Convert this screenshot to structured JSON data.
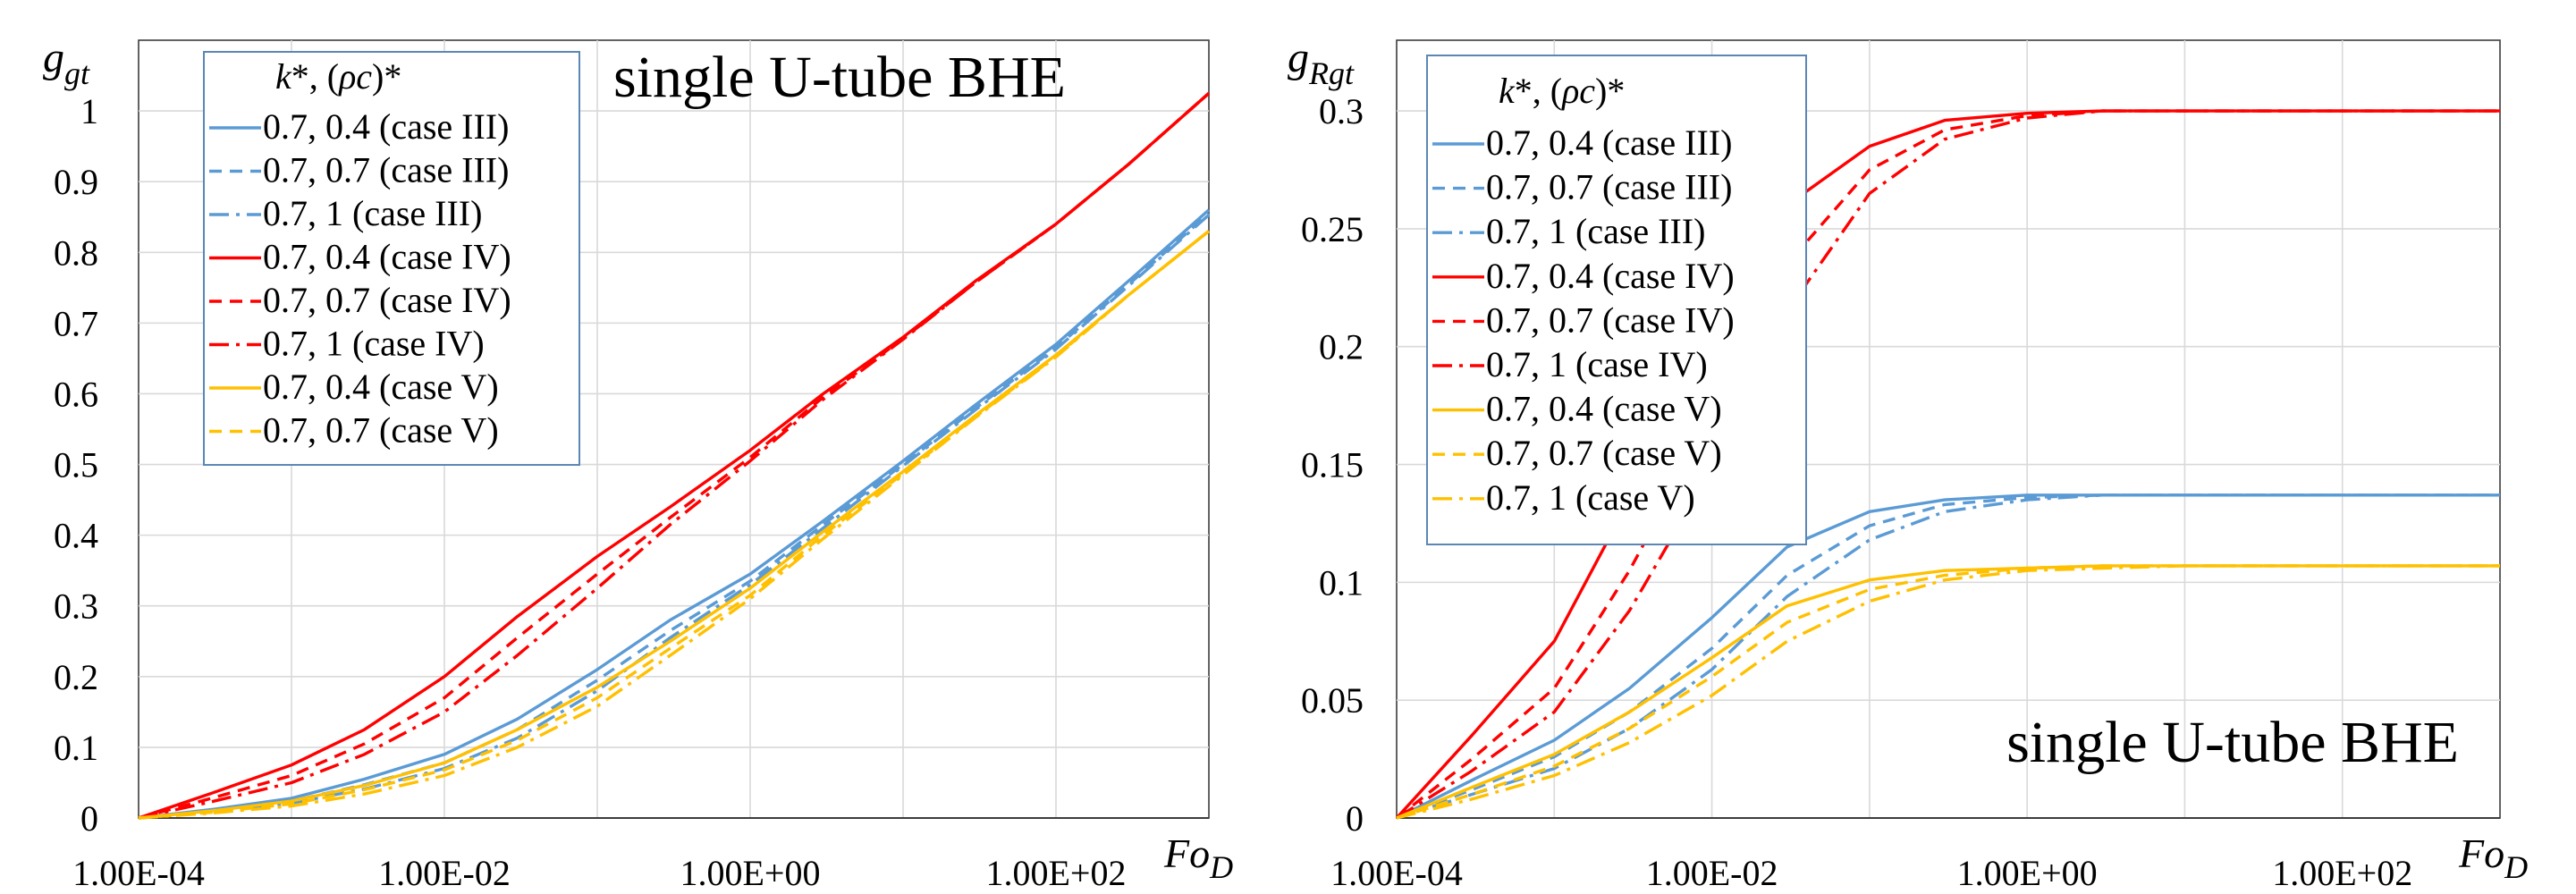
{
  "chart_data": [
    {
      "type": "line",
      "xscale": "log",
      "xlim": [
        0.0001,
        1000
      ],
      "ylim": [
        0,
        1.1
      ],
      "xticks": [
        0.0001,
        0.01,
        1,
        100
      ],
      "xtick_labels": [
        "1.00E-04",
        "1.00E-02",
        "1.00E+00",
        "1.00E+02"
      ],
      "yticks": [
        0,
        0.1,
        0.2,
        0.3,
        0.4,
        0.5,
        0.6,
        0.7,
        0.8,
        0.9,
        1
      ],
      "ytick_labels": [
        "0",
        "0.1",
        "0.2",
        "0.3",
        "0.4",
        "0.5",
        "0.6",
        "0.7",
        "0.8",
        "0.9",
        "1"
      ],
      "ylabel": {
        "main": "g",
        "sub": "gt"
      },
      "xlabel": {
        "main": "Fo",
        "sub": "D"
      },
      "annotation": "single U-tube BHE",
      "legend_title": {
        "k": "k",
        "a": "*, (",
        "rho": "ρc",
        "b": ")*"
      },
      "grid": true,
      "legend_position": "top-left",
      "series": [
        {
          "name": "0.7, 0.4 (case III)",
          "color": "#5b9bd5",
          "dash": "solid",
          "x": [
            0.0001,
            0.0003,
            0.001,
            0.003,
            0.01,
            0.03,
            0.1,
            0.3,
            1,
            3,
            10,
            30,
            100,
            300,
            1000
          ],
          "y": [
            0,
            0.012,
            0.028,
            0.055,
            0.09,
            0.14,
            0.21,
            0.28,
            0.345,
            0.42,
            0.505,
            0.585,
            0.67,
            0.76,
            0.86
          ]
        },
        {
          "name": "0.7, 0.7 (case III)",
          "color": "#5b9bd5",
          "dash": "dash",
          "x": [
            0.0001,
            0.0003,
            0.001,
            0.003,
            0.01,
            0.03,
            0.1,
            0.3,
            1,
            3,
            10,
            30,
            100,
            300,
            1000
          ],
          "y": [
            0,
            0.01,
            0.024,
            0.047,
            0.078,
            0.125,
            0.195,
            0.265,
            0.335,
            0.415,
            0.5,
            0.58,
            0.665,
            0.755,
            0.855
          ]
        },
        {
          "name": "0.7, 1 (case III)",
          "color": "#5b9bd5",
          "dash": "dashdot",
          "x": [
            0.0001,
            0.0003,
            0.001,
            0.003,
            0.01,
            0.03,
            0.1,
            0.3,
            1,
            3,
            10,
            30,
            100,
            300,
            1000
          ],
          "y": [
            0,
            0.009,
            0.021,
            0.041,
            0.07,
            0.113,
            0.18,
            0.255,
            0.33,
            0.41,
            0.498,
            0.578,
            0.663,
            0.753,
            0.853
          ]
        },
        {
          "name": "0.7, 0.4 (case IV)",
          "color": "#ff0000",
          "dash": "solid",
          "x": [
            0.0001,
            0.0003,
            0.001,
            0.003,
            0.01,
            0.03,
            0.1,
            0.3,
            1,
            3,
            10,
            30,
            100,
            300,
            1000
          ],
          "y": [
            0,
            0.035,
            0.075,
            0.125,
            0.2,
            0.285,
            0.37,
            0.44,
            0.52,
            0.6,
            0.68,
            0.76,
            0.84,
            0.925,
            1.025
          ]
        },
        {
          "name": "0.7, 0.7 (case IV)",
          "color": "#ff0000",
          "dash": "dash",
          "x": [
            0.0001,
            0.0003,
            0.001,
            0.003,
            0.01,
            0.03,
            0.1,
            0.3,
            1,
            3,
            10,
            30,
            100,
            300,
            1000
          ],
          "y": [
            0,
            0.028,
            0.06,
            0.105,
            0.17,
            0.255,
            0.345,
            0.425,
            0.51,
            0.595,
            0.678,
            0.758,
            0.84,
            0.925,
            1.025
          ]
        },
        {
          "name": "0.7, 1 (case IV)",
          "color": "#ff0000",
          "dash": "dashdot",
          "x": [
            0.0001,
            0.0003,
            0.001,
            0.003,
            0.01,
            0.03,
            0.1,
            0.3,
            1,
            3,
            10,
            30,
            100,
            300,
            1000
          ],
          "y": [
            0,
            0.023,
            0.05,
            0.09,
            0.15,
            0.23,
            0.325,
            0.415,
            0.505,
            0.592,
            0.677,
            0.758,
            0.84,
            0.925,
            1.025
          ]
        },
        {
          "name": "0.7, 0.4 (case V)",
          "color": "#ffc000",
          "dash": "solid",
          "x": [
            0.0001,
            0.0003,
            0.001,
            0.003,
            0.01,
            0.03,
            0.1,
            0.3,
            1,
            3,
            10,
            30,
            100,
            300,
            1000
          ],
          "y": [
            0,
            0.01,
            0.024,
            0.046,
            0.078,
            0.125,
            0.185,
            0.25,
            0.325,
            0.405,
            0.49,
            0.57,
            0.655,
            0.74,
            0.83
          ]
        },
        {
          "name": "0.7, 0.7 (case V)",
          "color": "#ffc000",
          "dash": "dash",
          "x": [
            0.0001,
            0.0003,
            0.001,
            0.003,
            0.01,
            0.03,
            0.1,
            0.3,
            1,
            3,
            10,
            30,
            100,
            300,
            1000
          ],
          "y": [
            0,
            0.008,
            0.02,
            0.04,
            0.068,
            0.11,
            0.17,
            0.24,
            0.315,
            0.4,
            0.487,
            0.568,
            0.653,
            0.74,
            0.83
          ]
        },
        {
          "name": "",
          "color": "#ffc000",
          "dash": "dashdot",
          "x": [
            0.0001,
            0.0003,
            0.001,
            0.003,
            0.01,
            0.03,
            0.1,
            0.3,
            1,
            3,
            10,
            30,
            100,
            300,
            1000
          ],
          "y": [
            0,
            0.007,
            0.017,
            0.034,
            0.06,
            0.1,
            0.158,
            0.23,
            0.31,
            0.395,
            0.485,
            0.567,
            0.652,
            0.74,
            0.83
          ]
        }
      ]
    },
    {
      "type": "line",
      "xscale": "log",
      "xlim": [
        0.0001,
        1000
      ],
      "ylim": [
        0,
        0.33
      ],
      "xticks": [
        0.0001,
        0.01,
        1,
        100
      ],
      "xtick_labels": [
        "1.00E-04",
        "1.00E-02",
        "1.00E+00",
        "1.00E+02"
      ],
      "yticks": [
        0,
        0.05,
        0.1,
        0.15,
        0.2,
        0.25,
        0.3
      ],
      "ytick_labels": [
        "0",
        "0.05",
        "0.1",
        "0.15",
        "0.2",
        "0.25",
        "0.3"
      ],
      "ylabel": {
        "main": "g",
        "sub": "Rgt"
      },
      "xlabel": {
        "main": "Fo",
        "sub": "D"
      },
      "annotation": "single U-tube BHE",
      "legend_title": {
        "k": "k",
        "a": "*, (",
        "rho": "ρc",
        "b": ")*"
      },
      "grid": true,
      "legend_position": "top-left",
      "series": [
        {
          "name": "0.7, 0.4 (case III)",
          "color": "#5b9bd5",
          "dash": "solid",
          "x": [
            0.0001,
            0.0003,
            0.001,
            0.003,
            0.01,
            0.03,
            0.1,
            0.3,
            1,
            3,
            10,
            1000
          ],
          "y": [
            0,
            0.016,
            0.033,
            0.055,
            0.085,
            0.115,
            0.13,
            0.135,
            0.137,
            0.137,
            0.137,
            0.137
          ]
        },
        {
          "name": "0.7, 0.7 (case III)",
          "color": "#5b9bd5",
          "dash": "dash",
          "x": [
            0.0001,
            0.0003,
            0.001,
            0.003,
            0.01,
            0.03,
            0.1,
            0.3,
            1,
            3,
            10,
            1000
          ],
          "y": [
            0,
            0.012,
            0.026,
            0.045,
            0.072,
            0.103,
            0.124,
            0.133,
            0.136,
            0.137,
            0.137,
            0.137
          ]
        },
        {
          "name": "0.7, 1 (case III)",
          "color": "#5b9bd5",
          "dash": "dashdot",
          "x": [
            0.0001,
            0.0003,
            0.001,
            0.003,
            0.01,
            0.03,
            0.1,
            0.3,
            1,
            3,
            10,
            1000
          ],
          "y": [
            0,
            0.01,
            0.021,
            0.038,
            0.063,
            0.094,
            0.118,
            0.13,
            0.135,
            0.137,
            0.137,
            0.137
          ]
        },
        {
          "name": "0.7, 0.4 (case IV)",
          "color": "#ff0000",
          "dash": "solid",
          "x": [
            0.0001,
            0.0003,
            0.001,
            0.003,
            0.01,
            0.03,
            0.1,
            0.3,
            1,
            3,
            10,
            1000
          ],
          "y": [
            0,
            0.035,
            0.075,
            0.135,
            0.205,
            0.26,
            0.285,
            0.296,
            0.299,
            0.3,
            0.3,
            0.3
          ]
        },
        {
          "name": "0.7, 0.7 (case IV)",
          "color": "#ff0000",
          "dash": "dash",
          "x": [
            0.0001,
            0.0003,
            0.001,
            0.003,
            0.01,
            0.03,
            0.1,
            0.3,
            1,
            3,
            10,
            1000
          ],
          "y": [
            0,
            0.025,
            0.055,
            0.105,
            0.17,
            0.235,
            0.275,
            0.292,
            0.298,
            0.3,
            0.3,
            0.3
          ]
        },
        {
          "name": "0.7, 1 (case IV)",
          "color": "#ff0000",
          "dash": "dashdot",
          "x": [
            0.0001,
            0.0003,
            0.001,
            0.003,
            0.01,
            0.03,
            0.1,
            0.3,
            1,
            3,
            10,
            1000
          ],
          "y": [
            0,
            0.02,
            0.045,
            0.088,
            0.148,
            0.215,
            0.265,
            0.288,
            0.297,
            0.3,
            0.3,
            0.3
          ]
        },
        {
          "name": "0.7, 0.4 (case V)",
          "color": "#ffc000",
          "dash": "solid",
          "x": [
            0.0001,
            0.0003,
            0.001,
            0.003,
            0.01,
            0.03,
            0.1,
            0.3,
            1,
            3,
            10,
            1000
          ],
          "y": [
            0,
            0.013,
            0.027,
            0.045,
            0.068,
            0.09,
            0.101,
            0.105,
            0.106,
            0.107,
            0.107,
            0.107
          ]
        },
        {
          "name": "0.7, 0.7 (case V)",
          "color": "#ffc000",
          "dash": "dash",
          "x": [
            0.0001,
            0.0003,
            0.001,
            0.003,
            0.01,
            0.03,
            0.1,
            0.3,
            1,
            3,
            10,
            1000
          ],
          "y": [
            0,
            0.01,
            0.022,
            0.038,
            0.06,
            0.083,
            0.097,
            0.103,
            0.106,
            0.107,
            0.107,
            0.107
          ]
        },
        {
          "name": "0.7, 1 (case V)",
          "color": "#ffc000",
          "dash": "dashdot",
          "x": [
            0.0001,
            0.0003,
            0.001,
            0.003,
            0.01,
            0.03,
            0.1,
            0.3,
            1,
            3,
            10,
            1000
          ],
          "y": [
            0,
            0.008,
            0.018,
            0.032,
            0.052,
            0.075,
            0.092,
            0.101,
            0.105,
            0.106,
            0.107,
            0.107
          ]
        }
      ]
    }
  ]
}
